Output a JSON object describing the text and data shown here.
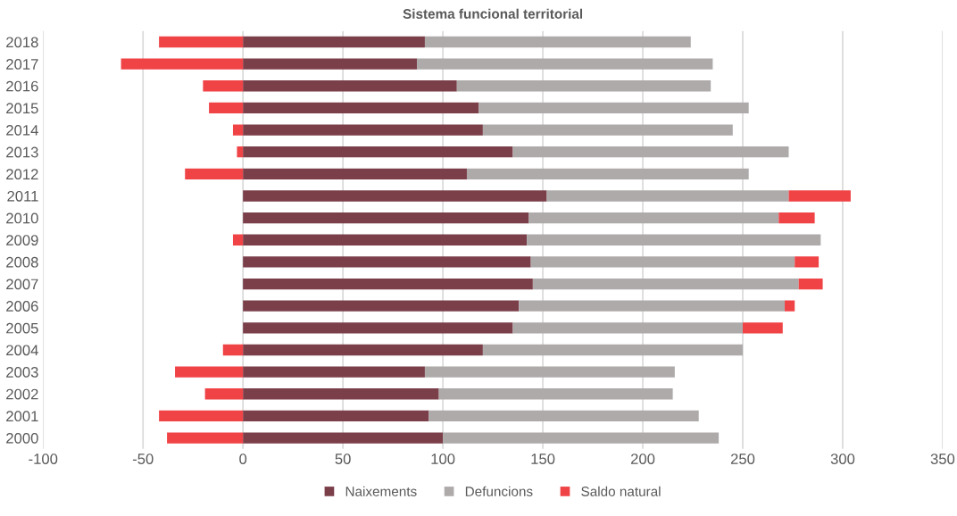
{
  "chart_data": {
    "type": "bar",
    "orientation": "horizontal",
    "stacked": true,
    "title": "Sistema funcional territorial",
    "categories": [
      "2018",
      "2017",
      "2016",
      "2015",
      "2014",
      "2013",
      "2012",
      "2011",
      "2010",
      "2009",
      "2008",
      "2007",
      "2006",
      "2005",
      "2004",
      "2003",
      "2002",
      "2001",
      "2000"
    ],
    "series": [
      {
        "name": "Naixements",
        "color": "#7b3f4a",
        "values": [
          91,
          87,
          107,
          118,
          120,
          135,
          112,
          152,
          143,
          142,
          144,
          145,
          138,
          135,
          120,
          91,
          98,
          93,
          100
        ]
      },
      {
        "name": "Defuncions",
        "color": "#aeaaaa",
        "values": [
          133,
          148,
          127,
          135,
          125,
          138,
          141,
          121,
          125,
          147,
          132,
          133,
          133,
          115,
          130,
          125,
          117,
          135,
          138
        ]
      },
      {
        "name": "Saldo natural",
        "color": "#f04346",
        "values": [
          -42,
          -61,
          -20,
          -17,
          -5,
          -3,
          -29,
          31,
          18,
          -5,
          12,
          12,
          5,
          20,
          -10,
          -34,
          -19,
          -42,
          -38
        ]
      }
    ],
    "xlim": [
      -100,
      350
    ],
    "xticks": [
      -100,
      -50,
      0,
      50,
      100,
      150,
      200,
      250,
      300,
      350
    ],
    "grid": "x",
    "legend": "bottom"
  }
}
